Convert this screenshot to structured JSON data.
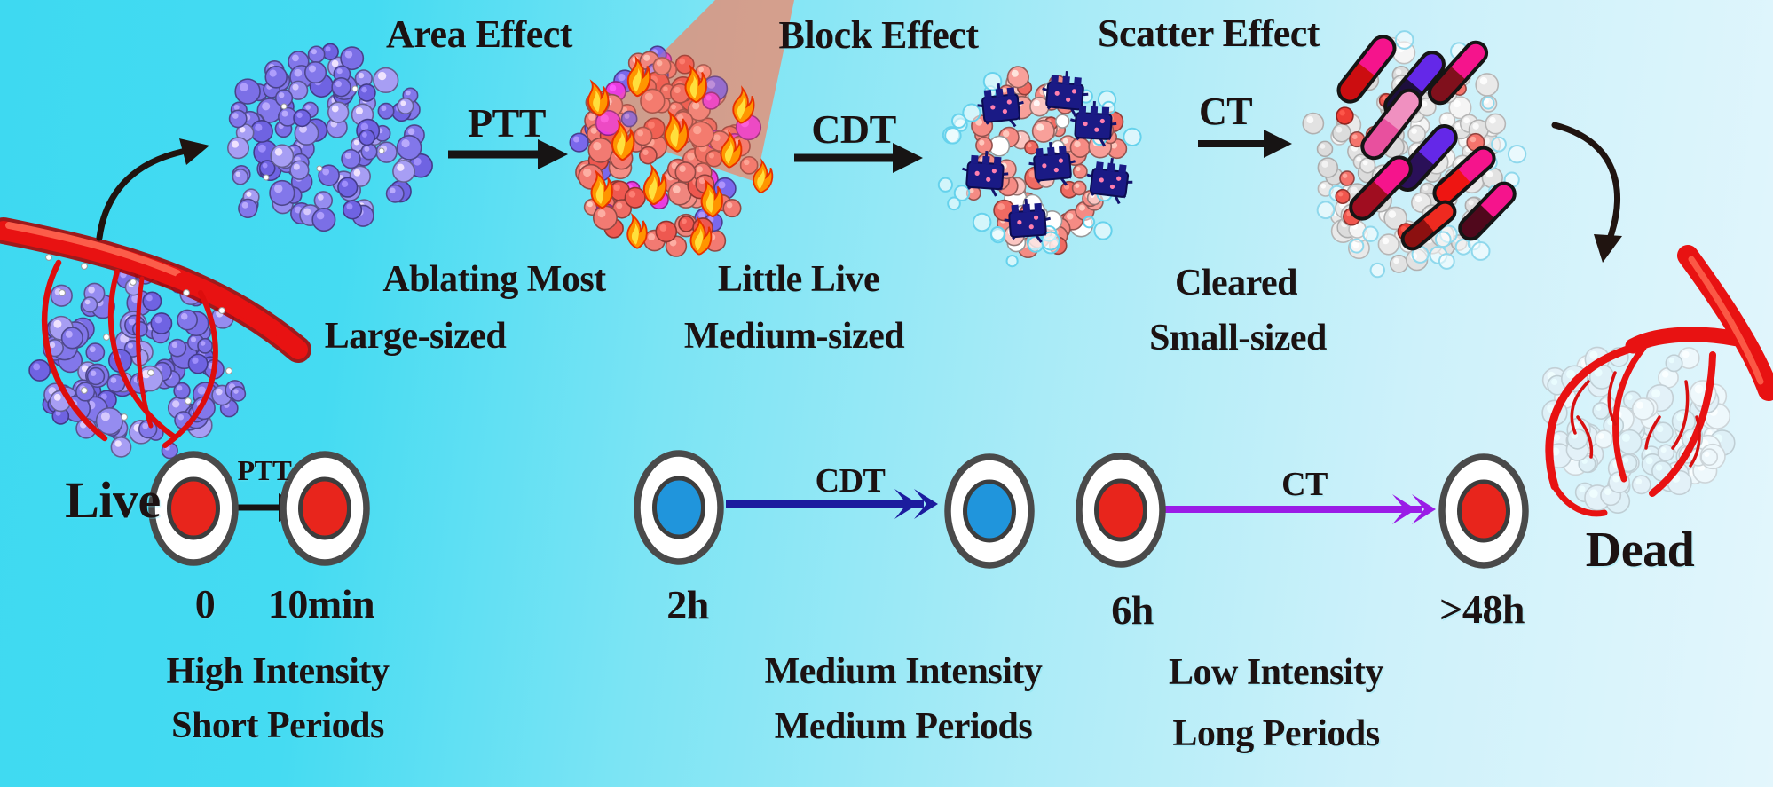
{
  "colors": {
    "background_left": "#3ed9f1",
    "background_right": "#e3f6fc",
    "text": "#1c1212",
    "arrow_black": "#171414",
    "arrow_navy": "#1c1c9e",
    "arrow_purple": "#9a1ce6",
    "cell_core_red": "#e8251c",
    "cell_core_blue": "#2095dc",
    "vessel_red": "#e81212",
    "laser_beam": "#f97e5e",
    "flame_orange": "#ff9500",
    "flame_yellow": "#ffe03c",
    "tumor_purple": "#8277ea",
    "tumor_pink": "#f58b84",
    "tumor_navy": "#1a1a85",
    "tumor_gray": "#e9e9e9",
    "tumor_dead": "#e3f1f8"
  },
  "top_flow": {
    "area_effect_title": "Area Effect",
    "block_effect_title": "Block Effect",
    "scatter_effect_title": "Scatter Effect",
    "ptt_label": "PTT",
    "cdt_label": "CDT",
    "ct_label": "CT",
    "stage1_caption_line1": "Ablating Most",
    "stage1_caption_line2": "Large-sized",
    "stage2_caption_line1": "Little Live",
    "stage2_caption_line2": "Medium-sized",
    "stage3_caption_line1": "Cleared",
    "stage3_caption_line2": "Small-sized",
    "live_label": "Live",
    "dead_label": "Dead"
  },
  "timeline": {
    "ptt": {
      "arrow_label": "PTT",
      "time_start": "0",
      "time_end": "10min",
      "caption_line1": "High Intensity",
      "caption_line2": "Short Periods"
    },
    "cdt": {
      "arrow_label": "CDT",
      "time_start": "2h",
      "caption_line1": "Medium Intensity",
      "caption_line2": "Medium Periods"
    },
    "ct": {
      "arrow_label": "CT",
      "time_start": "6h",
      "time_end": ">48h",
      "caption_line1": "Low Intensity",
      "caption_line2": "Long Periods"
    }
  }
}
